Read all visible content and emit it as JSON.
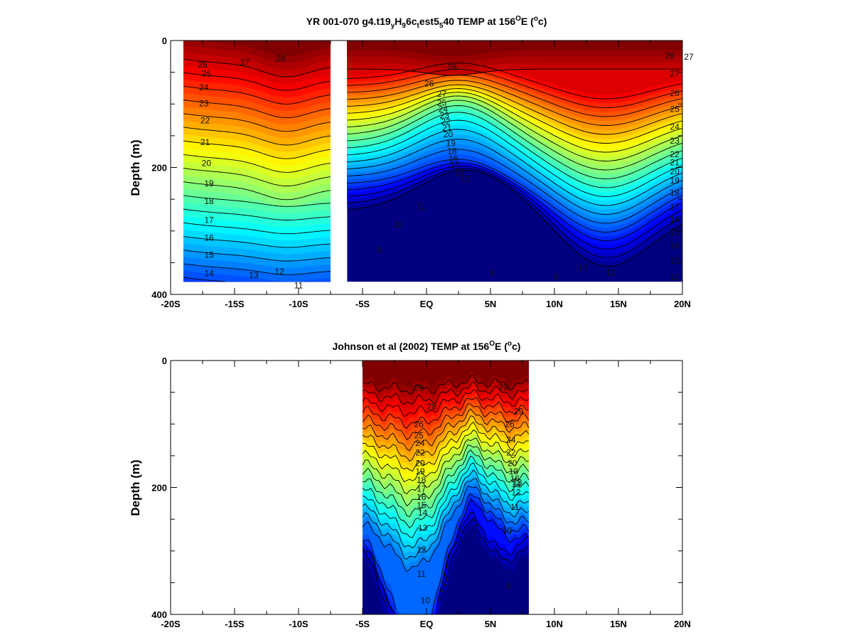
{
  "chart_data": [
    {
      "type": "heatmap",
      "subtype": "filled-contour",
      "title": "YR 001-070 g4.t19ᵧH₉ 6cₜ est5₅ 40 TEMP at 156⁰E (⁰c)",
      "title_main": "YR 001-070 g4.t19",
      "title_parts": [
        "YR 001-070 g4.t19",
        "y",
        "H",
        "9",
        "6c",
        "t",
        "est5",
        "5",
        "40 TEMP at 156",
        "O",
        "E (",
        "o",
        "c)"
      ],
      "xlabel": "",
      "ylabel": "Depth (m)",
      "x_ticks": [
        "-20S",
        "-15S",
        "-10S",
        "-5S",
        "EQ",
        "5N",
        "10N",
        "15N",
        "20N"
      ],
      "x_tick_values": [
        -20,
        -15,
        -10,
        -5,
        0,
        5,
        10,
        15,
        20
      ],
      "y_ticks": [
        "0",
        "200",
        "400"
      ],
      "y_tick_values": [
        0,
        200,
        400
      ],
      "xlim": [
        -20,
        20
      ],
      "ylim": [
        0,
        400
      ],
      "y_inverted": true,
      "color_scale": "jet",
      "color_range": [
        8,
        30
      ],
      "data_extent": [
        [
          -19,
          -7.5,
          0,
          380
        ],
        [
          -6.2,
          20,
          0,
          380
        ]
      ],
      "contour_levels": [
        8,
        9,
        10,
        11,
        12,
        13,
        14,
        15,
        16,
        17,
        18,
        19,
        20,
        21,
        22,
        23,
        24,
        25,
        26,
        27,
        28
      ],
      "contour_labels": [
        {
          "text": "28",
          "x": -11.4,
          "y": 28
        },
        {
          "text": "27",
          "x": -14.2,
          "y": 35
        },
        {
          "text": "26",
          "x": -17.5,
          "y": 38
        },
        {
          "text": "25",
          "x": -17.2,
          "y": 52
        },
        {
          "text": "24",
          "x": -17.4,
          "y": 74
        },
        {
          "text": "23",
          "x": -17.4,
          "y": 99
        },
        {
          "text": "22",
          "x": -17.3,
          "y": 126
        },
        {
          "text": "21",
          "x": -17.3,
          "y": 160
        },
        {
          "text": "20",
          "x": -17.2,
          "y": 193
        },
        {
          "text": "19",
          "x": -17.0,
          "y": 225
        },
        {
          "text": "18",
          "x": -17.0,
          "y": 253
        },
        {
          "text": "17",
          "x": -17.0,
          "y": 283
        },
        {
          "text": "16",
          "x": -17.0,
          "y": 311
        },
        {
          "text": "15",
          "x": -17.0,
          "y": 338
        },
        {
          "text": "14",
          "x": -17.0,
          "y": 367
        },
        {
          "text": "13",
          "x": -13.5,
          "y": 370
        },
        {
          "text": "12",
          "x": -11.5,
          "y": 364
        },
        {
          "text": "11",
          "x": -10.0,
          "y": 386
        },
        {
          "text": "28",
          "x": 2.0,
          "y": 42
        },
        {
          "text": "26",
          "x": 0.2,
          "y": 68
        },
        {
          "text": "27",
          "x": 20.5,
          "y": 26
        },
        {
          "text": "28",
          "x": 19.0,
          "y": 24
        },
        {
          "text": "27",
          "x": 19.4,
          "y": 52
        },
        {
          "text": "26",
          "x": 19.4,
          "y": 83
        },
        {
          "text": "25",
          "x": 19.4,
          "y": 108
        },
        {
          "text": "24",
          "x": 19.4,
          "y": 136
        },
        {
          "text": "23",
          "x": 19.4,
          "y": 158
        },
        {
          "text": "22",
          "x": 19.4,
          "y": 179
        },
        {
          "text": "21",
          "x": 19.4,
          "y": 192
        },
        {
          "text": "20",
          "x": 19.4,
          "y": 206
        },
        {
          "text": "19",
          "x": 19.4,
          "y": 221
        },
        {
          "text": "18",
          "x": 19.4,
          "y": 240
        },
        {
          "text": "17",
          "x": 19.4,
          "y": 262
        },
        {
          "text": "16",
          "x": 19.4,
          "y": 282
        },
        {
          "text": "15",
          "x": 19.4,
          "y": 302
        },
        {
          "text": "14",
          "x": 19.4,
          "y": 323
        },
        {
          "text": "13",
          "x": 19.4,
          "y": 347
        },
        {
          "text": "12",
          "x": 19.4,
          "y": 373
        },
        {
          "text": "11",
          "x": 14.4,
          "y": 366
        },
        {
          "text": "10",
          "x": 12.2,
          "y": 358
        },
        {
          "text": "9",
          "x": 10.1,
          "y": 372
        },
        {
          "text": "8",
          "x": 5.1,
          "y": 366
        },
        {
          "text": "27",
          "x": 1.2,
          "y": 84
        },
        {
          "text": "25",
          "x": 1.2,
          "y": 98
        },
        {
          "text": "24",
          "x": 1.3,
          "y": 108
        },
        {
          "text": "23",
          "x": 1.4,
          "y": 118
        },
        {
          "text": "22",
          "x": 1.5,
          "y": 128
        },
        {
          "text": "21",
          "x": 1.6,
          "y": 138
        },
        {
          "text": "20",
          "x": 1.7,
          "y": 148
        },
        {
          "text": "19",
          "x": 1.9,
          "y": 162
        },
        {
          "text": "18",
          "x": 2.0,
          "y": 174
        },
        {
          "text": "16",
          "x": 2.1,
          "y": 186
        },
        {
          "text": "14",
          "x": 2.2,
          "y": 196
        },
        {
          "text": "13",
          "x": 2.6,
          "y": 208
        },
        {
          "text": "12",
          "x": 3.0,
          "y": 218
        },
        {
          "text": "11",
          "x": -0.4,
          "y": 262
        },
        {
          "text": "10",
          "x": -2.2,
          "y": 290
        },
        {
          "text": "9",
          "x": -3.7,
          "y": 330
        }
      ]
    },
    {
      "type": "heatmap",
      "subtype": "filled-contour",
      "title": "Johnson et al (2002) TEMP at 156⁰E (⁰c)",
      "title_parts": [
        "Johnson et al (2002) TEMP at 156",
        "O",
        "E (",
        "o",
        "c)"
      ],
      "xlabel": "",
      "ylabel": "Depth (m)",
      "x_ticks": [
        "-20S",
        "-15S",
        "-10S",
        "-5S",
        "EQ",
        "5N",
        "10N",
        "15N",
        "20N"
      ],
      "x_tick_values": [
        -20,
        -15,
        -10,
        -5,
        0,
        5,
        10,
        15,
        20
      ],
      "y_ticks": [
        "0",
        "200",
        "400"
      ],
      "y_tick_values": [
        0,
        200,
        400
      ],
      "xlim": [
        -20,
        20
      ],
      "ylim": [
        0,
        400
      ],
      "y_inverted": true,
      "color_scale": "jet",
      "color_range": [
        8,
        30
      ],
      "data_extent": [
        [
          -5,
          8,
          0,
          400
        ]
      ],
      "contour_levels": [
        9,
        10,
        11,
        12,
        13,
        14,
        15,
        16,
        17,
        18,
        19,
        20,
        21,
        22,
        23,
        24,
        25,
        26,
        27,
        28,
        29
      ],
      "contour_labels": [
        {
          "text": "29",
          "x": -0.6,
          "y": 43
        },
        {
          "text": "29",
          "x": 6.0,
          "y": 42
        },
        {
          "text": "28",
          "x": 0.4,
          "y": 73
        },
        {
          "text": "29",
          "x": 7.2,
          "y": 80
        },
        {
          "text": "26",
          "x": -0.6,
          "y": 100
        },
        {
          "text": "25",
          "x": -0.6,
          "y": 118
        },
        {
          "text": "24",
          "x": -0.5,
          "y": 130
        },
        {
          "text": "22",
          "x": -0.5,
          "y": 145
        },
        {
          "text": "20",
          "x": -0.5,
          "y": 162
        },
        {
          "text": "19",
          "x": -0.5,
          "y": 175
        },
        {
          "text": "18",
          "x": -0.4,
          "y": 188
        },
        {
          "text": "17",
          "x": -0.4,
          "y": 202
        },
        {
          "text": "16",
          "x": -0.4,
          "y": 215
        },
        {
          "text": "15",
          "x": -0.4,
          "y": 228
        },
        {
          "text": "14",
          "x": -0.3,
          "y": 240
        },
        {
          "text": "13",
          "x": -0.3,
          "y": 264
        },
        {
          "text": "12",
          "x": -0.4,
          "y": 298
        },
        {
          "text": "11",
          "x": -0.4,
          "y": 336
        },
        {
          "text": "10",
          "x": -0.1,
          "y": 378
        },
        {
          "text": "26",
          "x": 6.5,
          "y": 100
        },
        {
          "text": "24",
          "x": 6.6,
          "y": 125
        },
        {
          "text": "22",
          "x": 6.6,
          "y": 145
        },
        {
          "text": "20",
          "x": 6.7,
          "y": 162
        },
        {
          "text": "18",
          "x": 6.8,
          "y": 175
        },
        {
          "text": "16",
          "x": 6.9,
          "y": 186
        },
        {
          "text": "14",
          "x": 7.0,
          "y": 195
        },
        {
          "text": "13",
          "x": 7.1,
          "y": 192
        },
        {
          "text": "12",
          "x": 7.0,
          "y": 208
        },
        {
          "text": "11",
          "x": 6.9,
          "y": 231
        },
        {
          "text": "10",
          "x": 6.3,
          "y": 268
        },
        {
          "text": "9",
          "x": 6.4,
          "y": 355
        }
      ]
    }
  ]
}
